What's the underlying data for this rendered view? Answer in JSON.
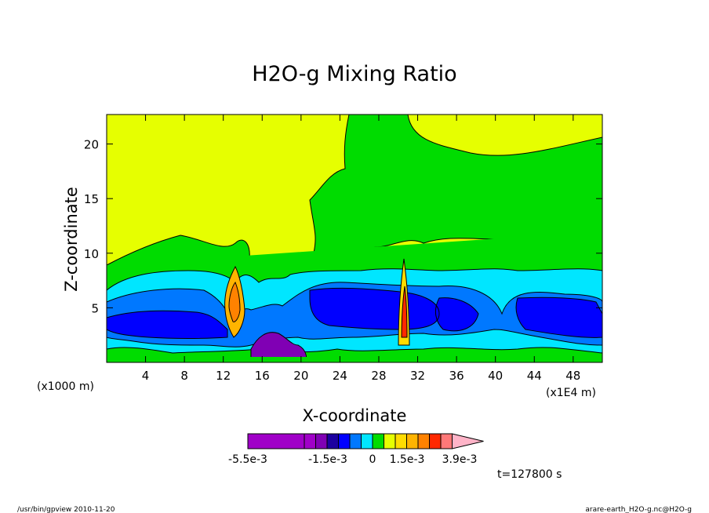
{
  "chart_data": {
    "type": "heatmap",
    "title": "H2O-g Mixing Ratio",
    "xlabel": "X-coordinate",
    "ylabel": "Z-coordinate",
    "x_ticks": [
      "4",
      "8",
      "12",
      "16",
      "20",
      "24",
      "28",
      "32",
      "36",
      "40",
      "44",
      "48"
    ],
    "x_tick_values": [
      4,
      8,
      12,
      16,
      20,
      24,
      28,
      32,
      36,
      40,
      44,
      48
    ],
    "y_ticks": [
      "5",
      "10",
      "15",
      "20"
    ],
    "y_tick_values": [
      5,
      10,
      15,
      20
    ],
    "x_unit_left": "(x1000 m)",
    "x_unit_right": "(x1E4 m)",
    "xlim": [
      0,
      51
    ],
    "ylim": [
      0,
      22.7
    ],
    "colorbar": {
      "labels": [
        "-5.5e-3",
        "-1.5e-3",
        "0",
        "1.5e-3",
        "3.9e-3"
      ],
      "colors": [
        "#a000c8",
        "#a000c8",
        "#8000b4",
        "#1c00a0",
        "#0000ff",
        "#0078ff",
        "#00e6ff",
        "#00dc00",
        "#e6ff00",
        "#ffdc00",
        "#ffb400",
        "#ff8200",
        "#ff2800",
        "#ff7878",
        "#ffb4c8"
      ]
    },
    "time_label": "t=127800 s",
    "regions": [
      {
        "level": "yellow",
        "x_range": [
          0,
          51
        ],
        "z_range": [
          9,
          22.7
        ]
      },
      {
        "level": "green",
        "x_range": [
          0,
          51
        ],
        "z_range": [
          7,
          11
        ]
      },
      {
        "level": "cyan",
        "x_range": [
          0,
          51
        ],
        "z_range": [
          2,
          7
        ]
      },
      {
        "level": "blue",
        "x_range": [
          0,
          51
        ],
        "z_range": [
          1.5,
          6
        ]
      },
      {
        "level": "purple",
        "x_range": [
          15,
          21
        ],
        "z_range": [
          0,
          2.5
        ]
      },
      {
        "level": "orange",
        "x_range": [
          11.5,
          14.5
        ],
        "z_range": [
          1,
          9
        ]
      },
      {
        "level": "red",
        "x_range": [
          30,
          31
        ],
        "z_range": [
          2,
          10
        ]
      }
    ]
  },
  "footer": {
    "left": "/usr/bin/gpview   2010-11-20",
    "right": "arare-earth_H2O-g.nc@H2O-g"
  }
}
